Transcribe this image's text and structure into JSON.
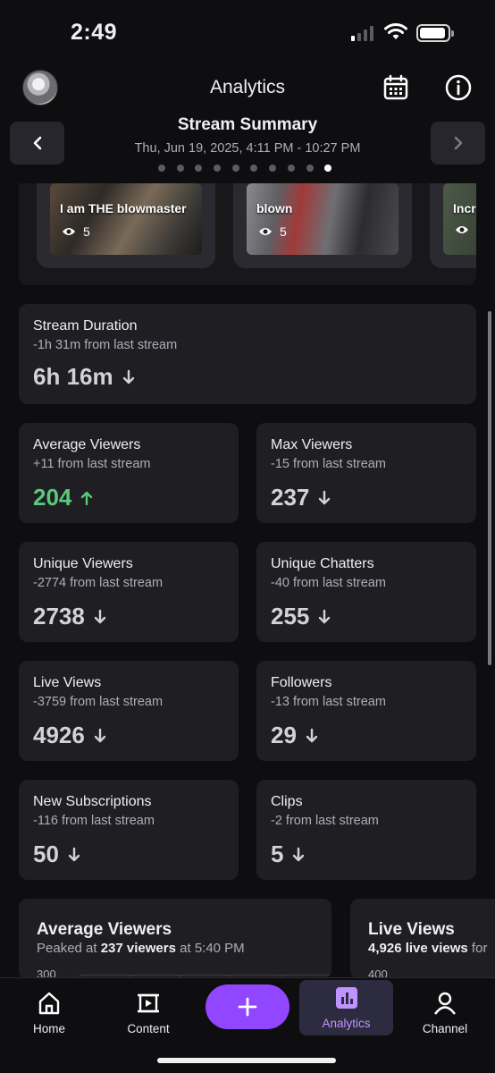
{
  "status_bar": {
    "time": "2:49"
  },
  "header": {
    "title": "Analytics",
    "calendar_icon": "calendar-icon",
    "info_icon": "info-icon"
  },
  "summary": {
    "title": "Stream Summary",
    "date_range": "Thu, Jun 19, 2025, 4:11 PM - 10:27 PM",
    "page_count": 10,
    "active_page": 10
  },
  "clips": [
    {
      "title": "I am THE blowmaster",
      "views": "5"
    },
    {
      "title": "blown",
      "views": "5"
    },
    {
      "title": "Incr",
      "views": ""
    }
  ],
  "stats": {
    "duration": {
      "title": "Stream Duration",
      "delta": "-1h 31m from last stream",
      "value": "6h 16m",
      "trend": "down"
    },
    "avg_viewers": {
      "title": "Average Viewers",
      "delta": "+11 from last stream",
      "value": "204",
      "trend": "up"
    },
    "max_viewers": {
      "title": "Max Viewers",
      "delta": "-15 from last stream",
      "value": "237",
      "trend": "down"
    },
    "unique_viewers": {
      "title": "Unique Viewers",
      "delta": "-2774 from last stream",
      "value": "2738",
      "trend": "down"
    },
    "unique_chatters": {
      "title": "Unique Chatters",
      "delta": "-40 from last stream",
      "value": "255",
      "trend": "down"
    },
    "live_views": {
      "title": "Live Views",
      "delta": "-3759 from last stream",
      "value": "4926",
      "trend": "down"
    },
    "followers": {
      "title": "Followers",
      "delta": "-13 from last stream",
      "value": "29",
      "trend": "down"
    },
    "new_subs": {
      "title": "New Subscriptions",
      "delta": "-116 from last stream",
      "value": "50",
      "trend": "down"
    },
    "clips": {
      "title": "Clips",
      "delta": "-2 from last stream",
      "value": "5",
      "trend": "down"
    }
  },
  "charts": {
    "avg_viewers": {
      "title": "Average Viewers",
      "sub_prefix": "Peaked at ",
      "sub_bold": "237 viewers",
      "sub_suffix": " at 5:40 PM",
      "tick": "300"
    },
    "live_views": {
      "title": "Live Views",
      "sub_bold": "4,926 live views",
      "sub_suffix": " for",
      "tick": "400"
    }
  },
  "tabs": [
    {
      "label": "Home",
      "icon": "home-icon"
    },
    {
      "label": "Content",
      "icon": "content-icon"
    },
    {
      "label": "Analytics",
      "icon": "analytics-icon"
    },
    {
      "label": "Channel",
      "icon": "channel-icon"
    }
  ],
  "colors": {
    "accent": "#9147ff",
    "positive": "#59c97b",
    "card": "#1f1f23",
    "background": "#0e0e10"
  }
}
